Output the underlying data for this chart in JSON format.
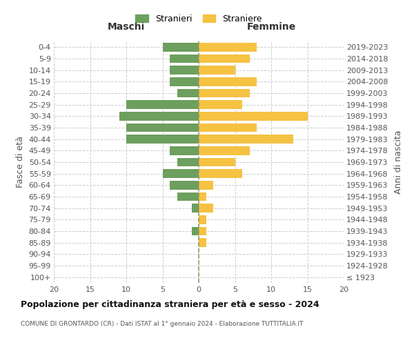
{
  "age_groups": [
    "100+",
    "95-99",
    "90-94",
    "85-89",
    "80-84",
    "75-79",
    "70-74",
    "65-69",
    "60-64",
    "55-59",
    "50-54",
    "45-49",
    "40-44",
    "35-39",
    "30-34",
    "25-29",
    "20-24",
    "15-19",
    "10-14",
    "5-9",
    "0-4"
  ],
  "birth_years": [
    "≤ 1923",
    "1924-1928",
    "1929-1933",
    "1934-1938",
    "1939-1943",
    "1944-1948",
    "1949-1953",
    "1954-1958",
    "1959-1963",
    "1964-1968",
    "1969-1973",
    "1974-1978",
    "1979-1983",
    "1984-1988",
    "1989-1993",
    "1994-1998",
    "1999-2003",
    "2004-2008",
    "2009-2013",
    "2014-2018",
    "2019-2023"
  ],
  "males": [
    0,
    0,
    0,
    0,
    1,
    0,
    1,
    3,
    4,
    5,
    3,
    4,
    10,
    10,
    11,
    10,
    3,
    4,
    4,
    4,
    5
  ],
  "females": [
    0,
    0,
    0,
    1,
    1,
    1,
    2,
    1,
    2,
    6,
    5,
    7,
    13,
    8,
    15,
    6,
    7,
    8,
    5,
    7,
    8
  ],
  "male_color": "#6d9f5e",
  "female_color": "#f5c242",
  "background_color": "#ffffff",
  "grid_color": "#cccccc",
  "title": "Popolazione per cittadinanza straniera per età e sesso - 2024",
  "subtitle": "COMUNE DI GRONTARDO (CR) - Dati ISTAT al 1° gennaio 2024 - Elaborazione TUTTITALIA.IT",
  "ylabel_left": "Fasce di età",
  "ylabel_right": "Anni di nascita",
  "xlabel_left": "Maschi",
  "xlabel_top_right": "Femmine",
  "legend_male": "Stranieri",
  "legend_female": "Straniere",
  "xlim": 20,
  "bar_height": 0.75
}
